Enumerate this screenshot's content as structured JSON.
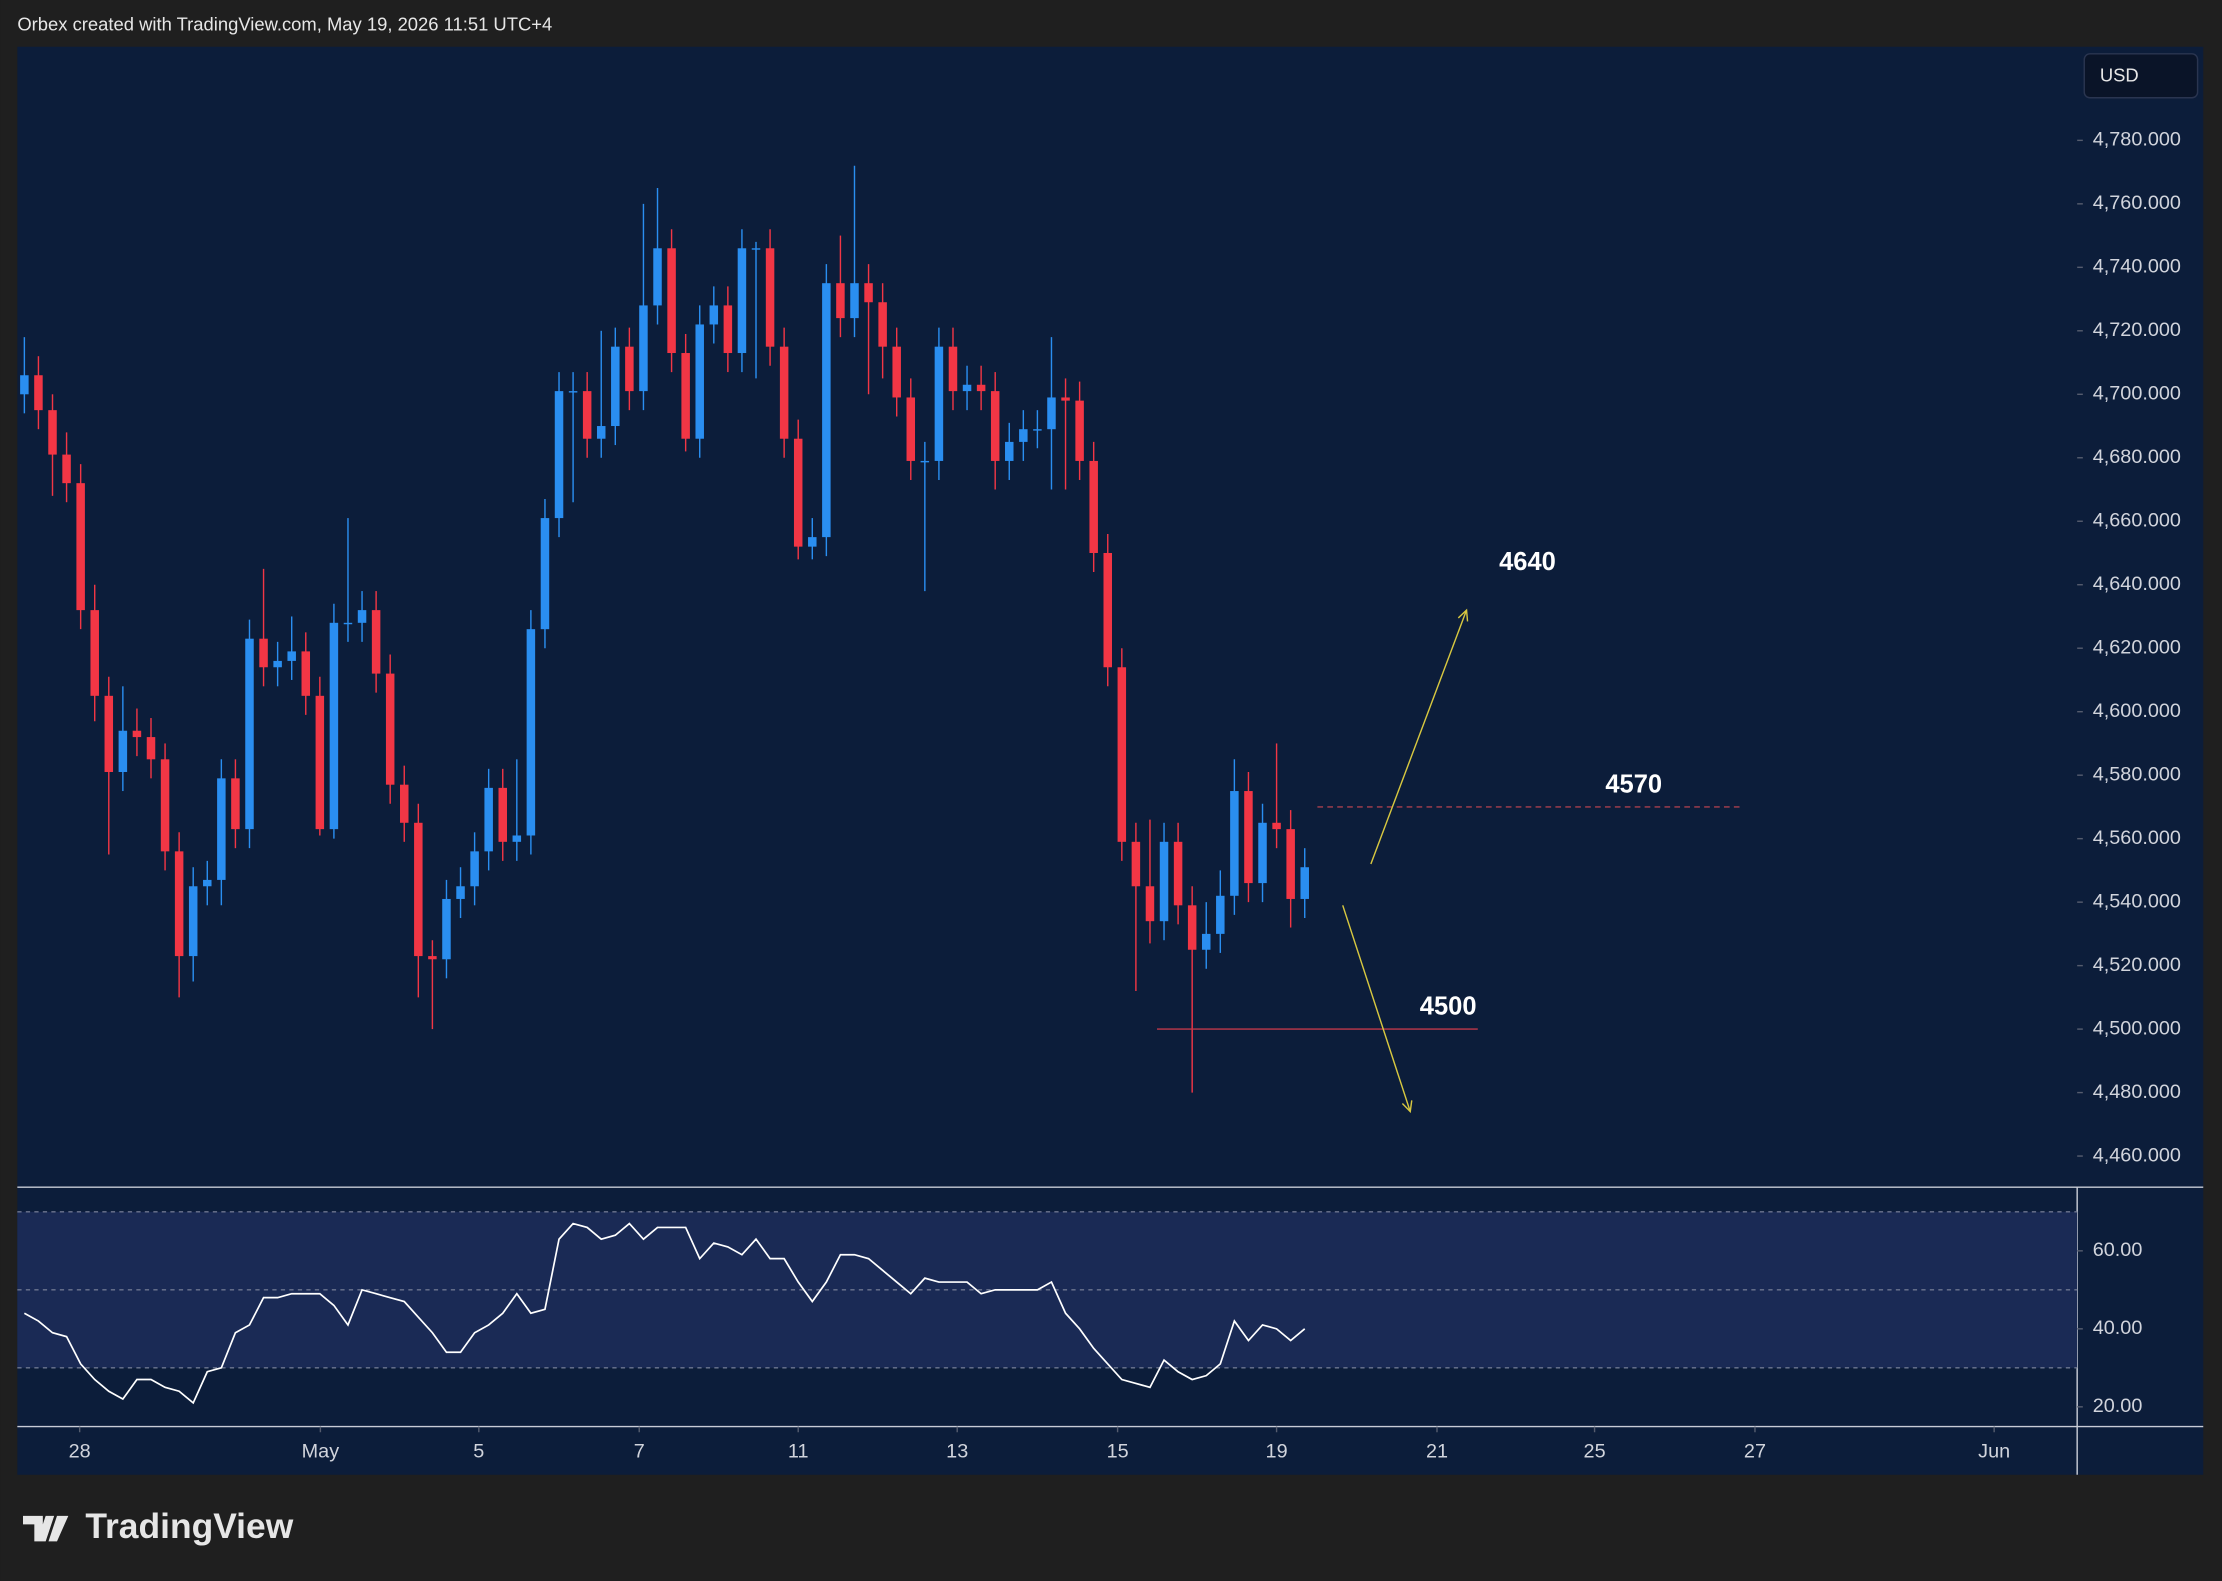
{
  "header": {
    "caption": "Orbex created with TradingView.com, May 19, 2026 11:51 UTC+4"
  },
  "footer": {
    "logo": "TradingView"
  },
  "chart_data": [
    {
      "type": "candlestick",
      "currency": "USD",
      "up_color": "#2a8ef0",
      "down_color": "#f23645",
      "open": [
        4700,
        4706,
        4695,
        4681,
        4672,
        4632,
        4605,
        4581,
        4594,
        4592,
        4585,
        4556,
        4523,
        4545,
        4547,
        4579,
        4563,
        4623,
        4614,
        4616,
        4619,
        4605,
        4563,
        4628,
        4628,
        4632,
        4612,
        4577,
        4565,
        4523,
        4522,
        4541,
        4545,
        4556,
        4576,
        4559,
        4561,
        4626,
        4661,
        4701,
        4701,
        4686,
        4690,
        4715,
        4701,
        4728,
        4746,
        4713,
        4686,
        4722,
        4728,
        4713,
        4746,
        4746,
        4715,
        4686,
        4652,
        4655,
        4735,
        4724,
        4735,
        4729,
        4715,
        4699,
        4679,
        4679,
        4715,
        4701,
        4703,
        4701,
        4679,
        4685,
        4689,
        4689,
        4699,
        4698,
        4679,
        4650,
        4614,
        4559,
        4545,
        4534,
        4559,
        4539,
        4525,
        4530,
        4542,
        4575,
        4546,
        4565,
        4563,
        4541
      ],
      "high": [
        4718,
        4712,
        4700,
        4688,
        4678,
        4640,
        4611,
        4608,
        4601,
        4598,
        4590,
        4562,
        4551,
        4553,
        4585,
        4585,
        4629,
        4645,
        4622,
        4630,
        4625,
        4611,
        4634,
        4661,
        4638,
        4638,
        4618,
        4583,
        4571,
        4528,
        4547,
        4551,
        4562,
        4582,
        4582,
        4585,
        4632,
        4667,
        4707,
        4707,
        4707,
        4720,
        4721,
        4721,
        4760,
        4765,
        4752,
        4719,
        4728,
        4734,
        4734,
        4752,
        4748,
        4752,
        4721,
        4692,
        4661,
        4741,
        4750,
        4772,
        4741,
        4735,
        4721,
        4705,
        4685,
        4721,
        4721,
        4709,
        4709,
        4707,
        4691,
        4695,
        4695,
        4718,
        4705,
        4704,
        4685,
        4656,
        4620,
        4565,
        4566,
        4565,
        4565,
        4545,
        4540,
        4550,
        4585,
        4581,
        4571,
        4590,
        4569,
        4557
      ],
      "low": [
        4694,
        4689,
        4668,
        4666,
        4626,
        4597,
        4555,
        4575,
        4586,
        4579,
        4550,
        4510,
        4515,
        4539,
        4539,
        4557,
        4557,
        4608,
        4608,
        4610,
        4599,
        4561,
        4560,
        4622,
        4622,
        4606,
        4571,
        4559,
        4510,
        4500,
        4516,
        4535,
        4539,
        4550,
        4553,
        4553,
        4555,
        4620,
        4655,
        4666,
        4680,
        4680,
        4684,
        4695,
        4695,
        4722,
        4707,
        4682,
        4680,
        4716,
        4707,
        4707,
        4705,
        4709,
        4680,
        4648,
        4648,
        4649,
        4718,
        4718,
        4700,
        4705,
        4693,
        4673,
        4638,
        4673,
        4695,
        4695,
        4695,
        4670,
        4673,
        4679,
        4683,
        4670,
        4670,
        4673,
        4644,
        4608,
        4553,
        4512,
        4527,
        4528,
        4533,
        4480,
        4519,
        4524,
        4536,
        4540,
        4540,
        4557,
        4532,
        4535
      ],
      "close": [
        4706,
        4695,
        4681,
        4672,
        4632,
        4605,
        4581,
        4594,
        4592,
        4585,
        4556,
        4523,
        4545,
        4547,
        4579,
        4563,
        4623,
        4614,
        4616,
        4619,
        4605,
        4563,
        4628,
        4628,
        4632,
        4612,
        4577,
        4565,
        4523,
        4522,
        4541,
        4545,
        4556,
        4576,
        4559,
        4561,
        4626,
        4661,
        4701,
        4701,
        4686,
        4690,
        4715,
        4701,
        4728,
        4746,
        4713,
        4686,
        4722,
        4728,
        4713,
        4746,
        4746,
        4715,
        4686,
        4652,
        4655,
        4735,
        4724,
        4735,
        4729,
        4715,
        4699,
        4679,
        4679,
        4715,
        4701,
        4703,
        4701,
        4679,
        4685,
        4689,
        4689,
        4699,
        4698,
        4679,
        4650,
        4614,
        4559,
        4545,
        4534,
        4559,
        4539,
        4525,
        4530,
        4542,
        4575,
        4546,
        4565,
        4563,
        4541,
        4551
      ],
      "xlim": [
        -0.5,
        145.9
      ],
      "ylim": [
        4450.2,
        4808.6
      ],
      "yticks": [
        {
          "value": 4460,
          "label": "4,460.000"
        },
        {
          "value": 4480,
          "label": "4,480.000"
        },
        {
          "value": 4500,
          "label": "4,500.000"
        },
        {
          "value": 4520,
          "label": "4,520.000"
        },
        {
          "value": 4540,
          "label": "4,540.000"
        },
        {
          "value": 4560,
          "label": "4,560.000"
        },
        {
          "value": 4580,
          "label": "4,580.000"
        },
        {
          "value": 4600,
          "label": "4,600.000"
        },
        {
          "value": 4620,
          "label": "4,620.000"
        },
        {
          "value": 4640,
          "label": "4,640.000"
        },
        {
          "value": 4660,
          "label": "4,660.000"
        },
        {
          "value": 4680,
          "label": "4,680.000"
        },
        {
          "value": 4700,
          "label": "4,700.000"
        },
        {
          "value": 4720,
          "label": "4,720.000"
        },
        {
          "value": 4740,
          "label": "4,740.000"
        },
        {
          "value": 4760,
          "label": "4,760.000"
        },
        {
          "value": 4780,
          "label": "4,780.000"
        }
      ],
      "xticks": [
        {
          "value": 3.93,
          "label": "28"
        },
        {
          "value": 21.04,
          "label": "May"
        },
        {
          "value": 32.3,
          "label": "5"
        },
        {
          "value": 43.7,
          "label": "7"
        },
        {
          "value": 55.0,
          "label": "11"
        },
        {
          "value": 66.3,
          "label": "13"
        },
        {
          "value": 77.7,
          "label": "15"
        },
        {
          "value": 89.0,
          "label": "19"
        },
        {
          "value": 100.4,
          "label": "21"
        },
        {
          "value": 111.6,
          "label": "25"
        },
        {
          "value": 123.0,
          "label": "27"
        },
        {
          "value": 140.0,
          "label": "Jun"
        }
      ],
      "annotations": [
        {
          "value": 4640
        },
        {
          "value": 4570,
          "from": 91.9,
          "to": 121.9,
          "dash": true,
          "color": "#a8404e"
        },
        {
          "value": 4500,
          "from": 80.5,
          "to": 103.3,
          "dash": false,
          "color": "#c0384a"
        }
      ],
      "arrows": [
        {
          "from": [
            95.7,
            4552
          ],
          "to": [
            102.5,
            4632
          ],
          "color": "#d8c840"
        },
        {
          "from": [
            93.7,
            4539
          ],
          "to": [
            98.5,
            4474
          ],
          "color": "#d8c840"
        }
      ]
    },
    {
      "type": "line",
      "color": "#ffffff",
      "values": [
        44,
        42,
        39,
        38,
        31,
        27,
        24,
        22,
        27,
        27,
        25,
        24,
        21,
        29,
        30,
        39,
        41,
        48,
        48,
        49,
        49,
        49,
        46,
        41,
        50,
        49,
        48,
        47,
        43,
        39,
        34,
        34,
        39,
        41,
        44,
        49,
        44,
        45,
        63,
        67,
        66,
        63,
        64,
        67,
        63,
        66,
        66,
        66,
        58,
        62,
        61,
        59,
        63,
        58,
        58,
        52,
        47,
        52,
        59,
        59,
        58,
        55,
        52,
        49,
        53,
        52,
        52,
        52,
        49,
        50,
        50,
        50,
        50,
        52,
        44,
        40,
        35,
        31,
        27,
        26,
        25,
        32,
        29,
        27,
        28,
        31,
        42,
        37,
        41,
        40,
        37,
        40
      ],
      "xlim": [
        -0.5,
        145.9
      ],
      "ylim": [
        15.3,
        75.6
      ],
      "yticks": [
        {
          "value": 20,
          "label": "20.00"
        },
        {
          "value": 40,
          "label": "40.00"
        },
        {
          "value": 60,
          "label": "60.00"
        }
      ],
      "levels": [
        30,
        50,
        70
      ],
      "band_color": "#1a2a55"
    }
  ]
}
